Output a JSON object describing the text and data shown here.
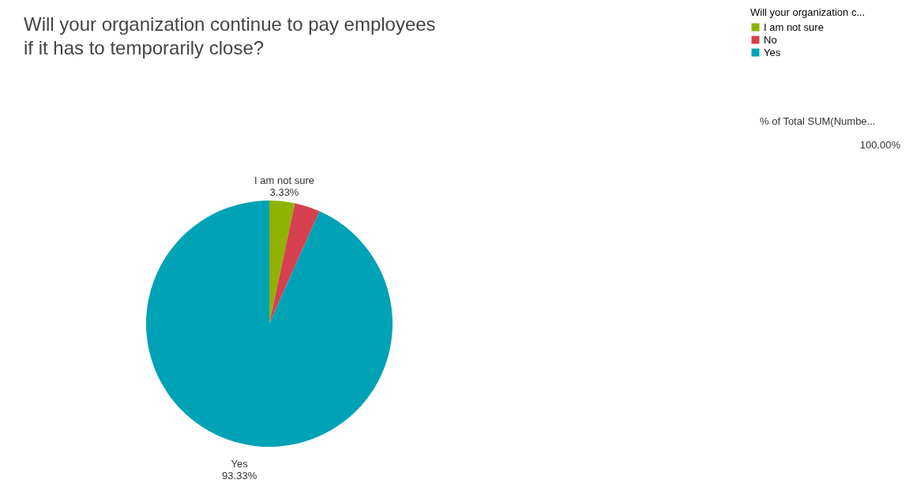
{
  "chart_data": {
    "type": "pie",
    "title": "Will your organization continue to pay employees\n if it has to temporarily close?",
    "legend_title": "Will your organization c...",
    "categories": [
      "I am not sure",
      "No",
      "Yes"
    ],
    "values": [
      3.33,
      3.34,
      93.33
    ],
    "colors": [
      "#8fb300",
      "#d6404f",
      "#00a2b5"
    ],
    "value_labels": [
      "3.33%",
      null,
      "93.33%"
    ],
    "legend": "top right",
    "annotations": [
      "% of Total SUM(Numbe...",
      "100.00%"
    ]
  }
}
